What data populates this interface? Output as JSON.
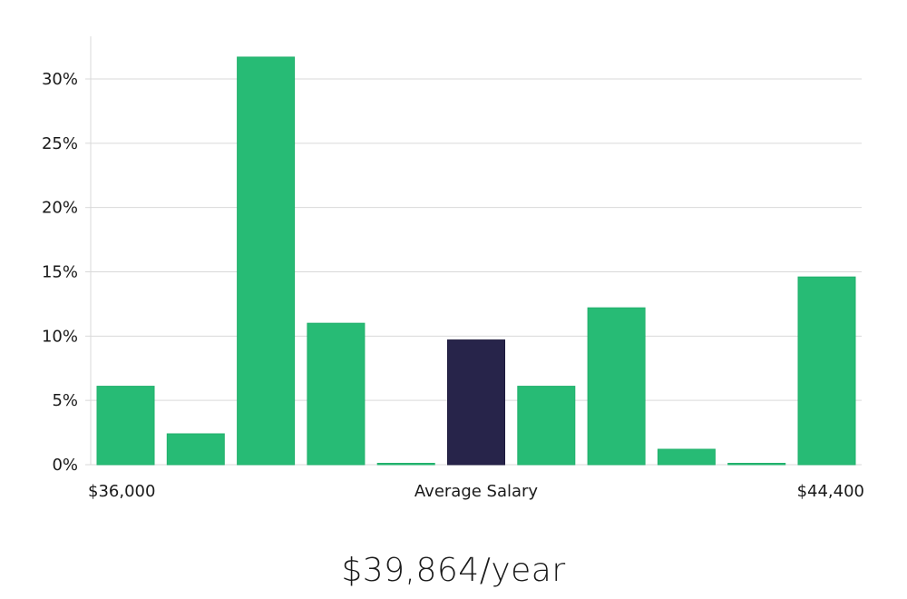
{
  "colors": {
    "bar": "#27bb75",
    "highlight": "#27244a",
    "grid": "#d9d9d9",
    "axis": "#d9d9d9",
    "text": "#1a1a1a"
  },
  "chart_data": {
    "type": "bar",
    "title": "",
    "xlabel": "",
    "ylabel": "",
    "ylim": [
      0,
      33
    ],
    "y_ticks": [
      "0%",
      "5%",
      "10%",
      "15%",
      "20%",
      "25%",
      "30%"
    ],
    "y_tick_values": [
      0,
      5,
      10,
      15,
      20,
      25,
      30
    ],
    "x_labels": {
      "left": "$36,000",
      "center": "Average Salary",
      "right": "$44,400"
    },
    "values": [
      6.1,
      2.4,
      31.7,
      11.0,
      0.1,
      9.7,
      6.1,
      12.2,
      1.2,
      0.1,
      14.6
    ],
    "highlight_index": 5,
    "grid": true
  },
  "summary": {
    "salary": "$39,864/year"
  }
}
